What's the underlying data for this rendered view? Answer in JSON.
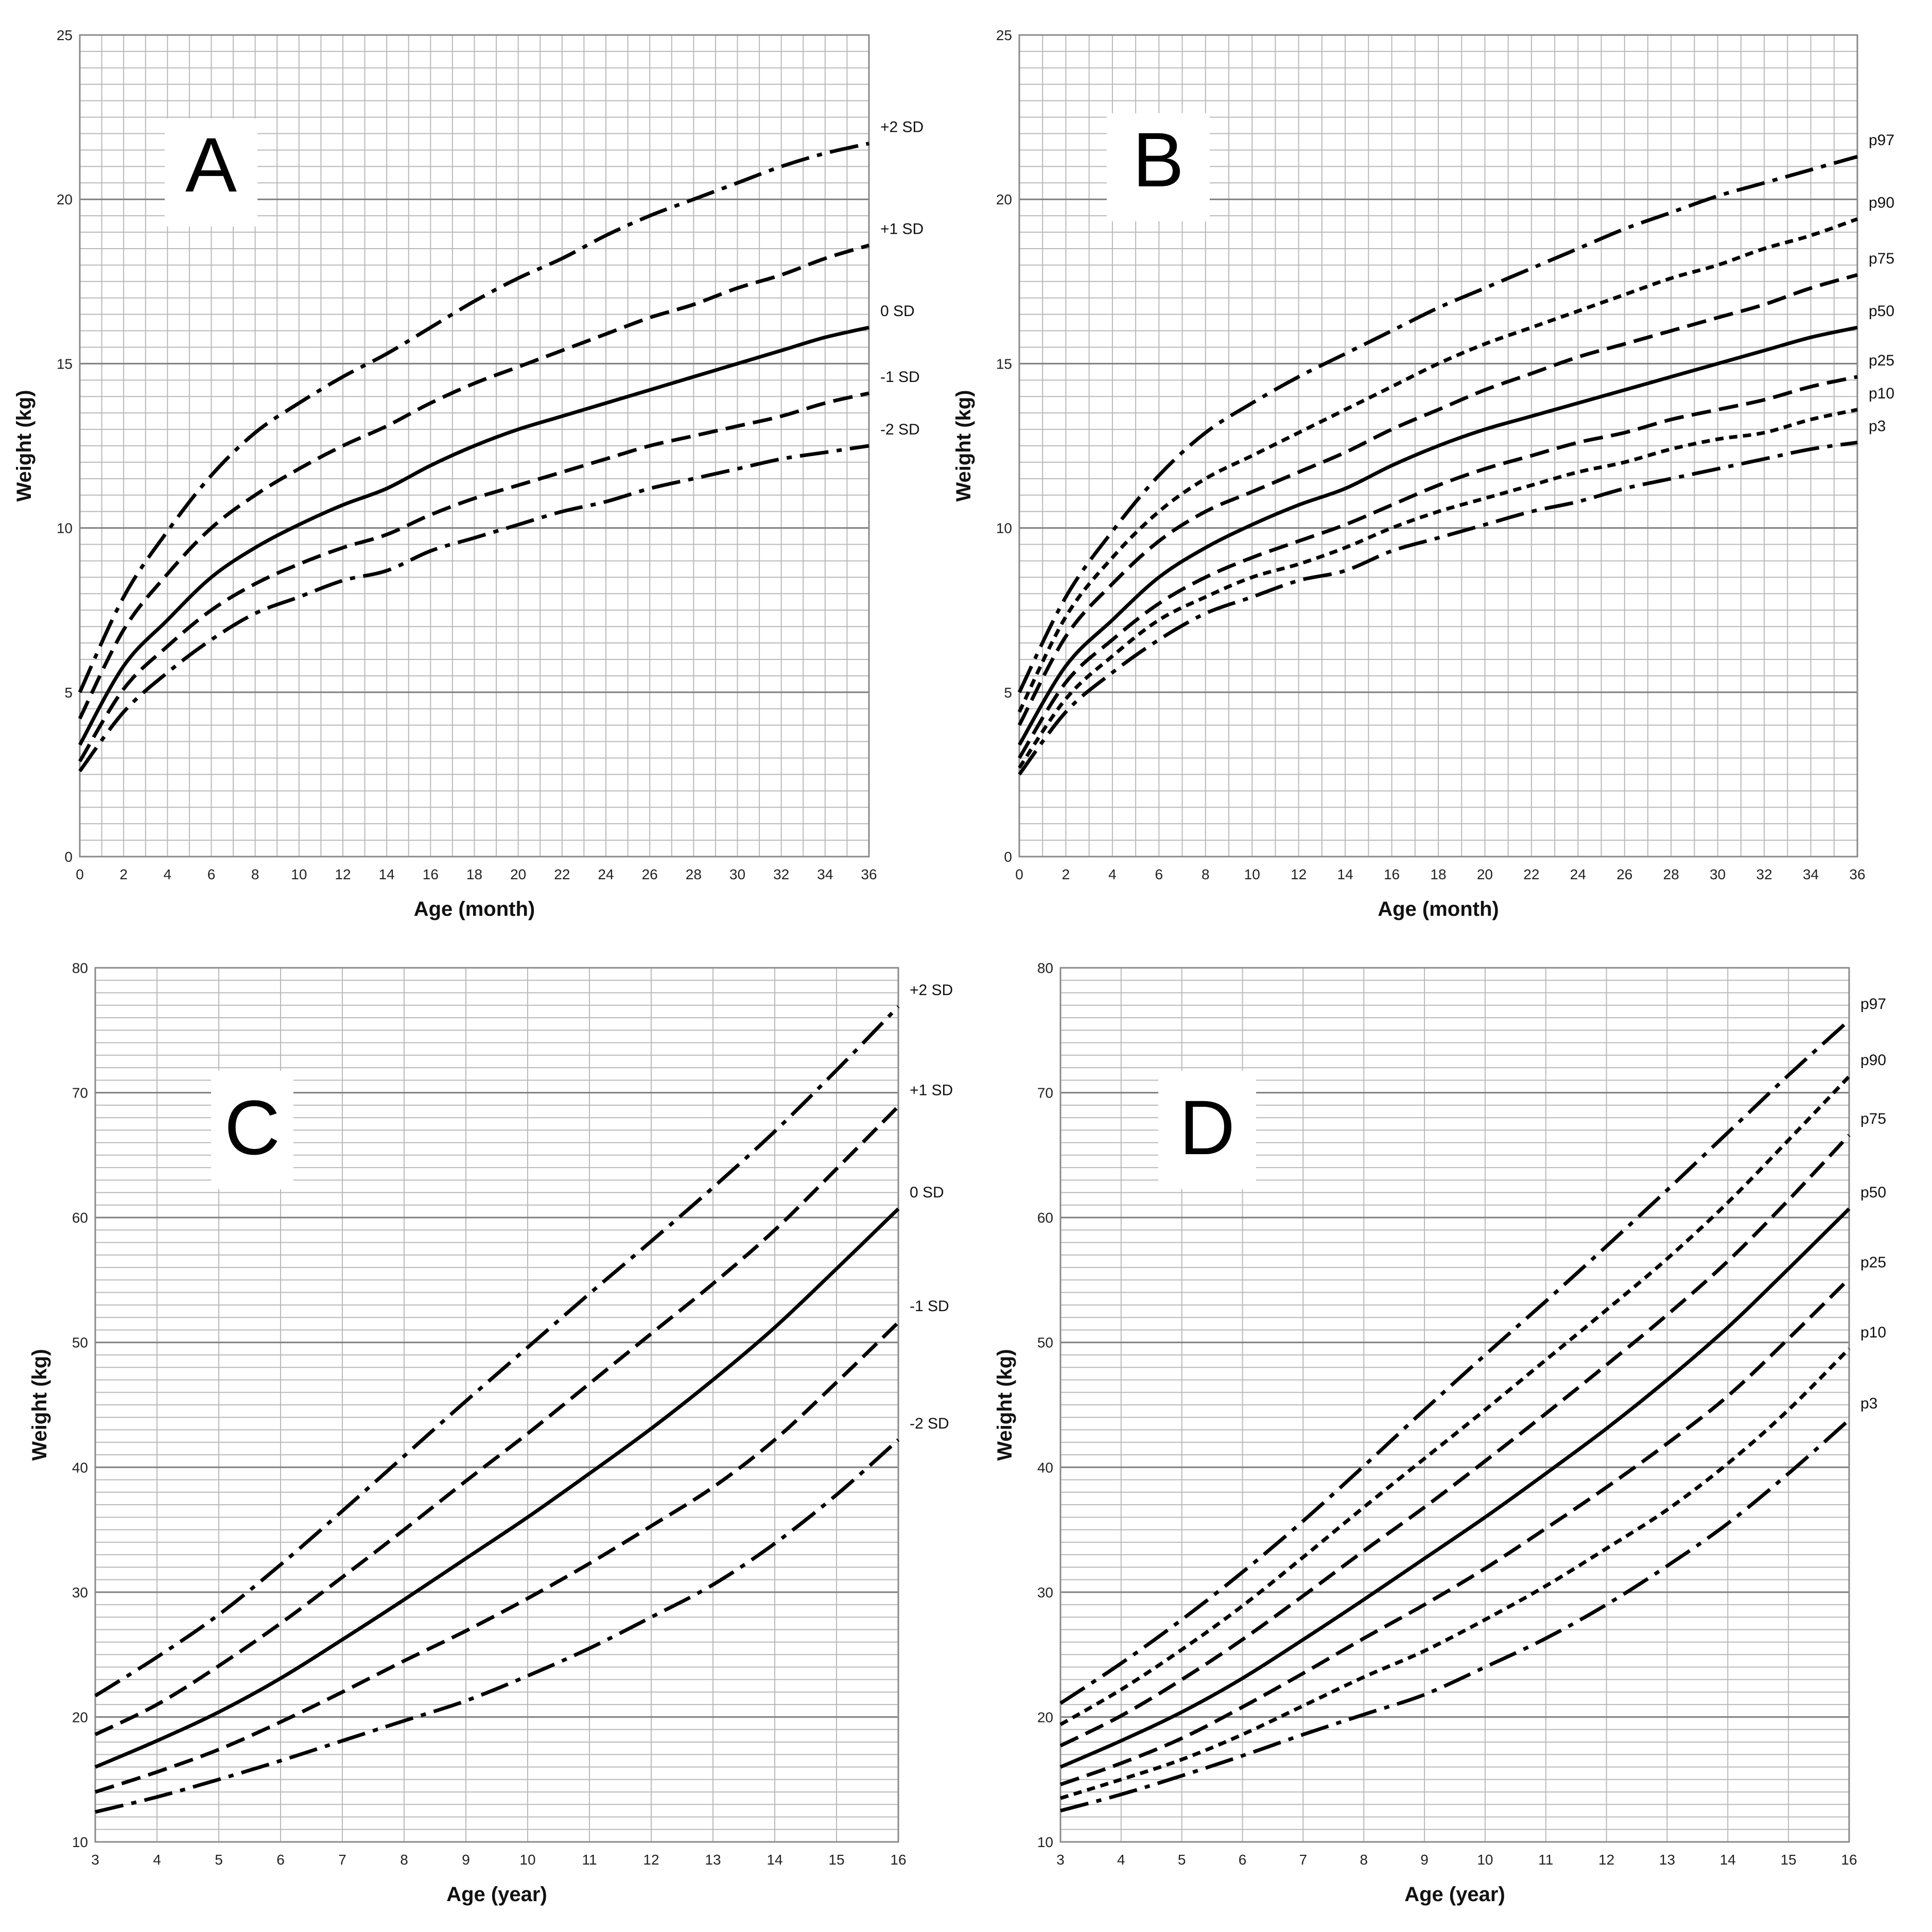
{
  "chart_data": [
    {
      "panel": "A",
      "type": "line",
      "xlabel": "Age (month)",
      "ylabel": "Weight (kg)",
      "xlim": [
        0,
        36
      ],
      "ylim": [
        0,
        25
      ],
      "xticks": [
        0,
        2,
        4,
        6,
        8,
        10,
        12,
        14,
        16,
        18,
        20,
        22,
        24,
        26,
        28,
        30,
        32,
        34,
        36
      ],
      "yticks": [
        0,
        5,
        10,
        15,
        20,
        25
      ],
      "grid": true,
      "x": [
        0,
        2,
        4,
        6,
        8,
        10,
        12,
        14,
        16,
        18,
        20,
        22,
        24,
        26,
        28,
        30,
        32,
        34,
        36
      ],
      "series": [
        {
          "name": "+2 SD",
          "style": "dashdot",
          "values": [
            5.0,
            7.9,
            9.9,
            11.6,
            12.9,
            13.8,
            14.6,
            15.3,
            16.1,
            16.9,
            17.6,
            18.2,
            18.9,
            19.5,
            20.0,
            20.5,
            21.0,
            21.4,
            21.7
          ]
        },
        {
          "name": "+1 SD",
          "style": "dash",
          "values": [
            4.2,
            6.9,
            8.6,
            10.0,
            11.0,
            11.8,
            12.5,
            13.1,
            13.8,
            14.4,
            14.9,
            15.4,
            15.9,
            16.4,
            16.8,
            17.3,
            17.7,
            18.2,
            18.6
          ]
        },
        {
          "name": "0 SD",
          "style": "solid",
          "values": [
            3.4,
            5.8,
            7.2,
            8.5,
            9.4,
            10.1,
            10.7,
            11.2,
            11.9,
            12.5,
            13.0,
            13.4,
            13.8,
            14.2,
            14.6,
            15.0,
            15.4,
            15.8,
            16.1
          ]
        },
        {
          "name": "-1 SD",
          "style": "dash",
          "values": [
            2.9,
            5.1,
            6.4,
            7.5,
            8.3,
            8.9,
            9.4,
            9.8,
            10.4,
            10.9,
            11.3,
            11.7,
            12.1,
            12.5,
            12.8,
            13.1,
            13.4,
            13.8,
            14.1
          ]
        },
        {
          "name": "-2 SD",
          "style": "dashdot",
          "values": [
            2.6,
            4.4,
            5.6,
            6.6,
            7.4,
            7.9,
            8.4,
            8.7,
            9.3,
            9.7,
            10.1,
            10.5,
            10.8,
            11.2,
            11.5,
            11.8,
            12.1,
            12.3,
            12.5
          ]
        }
      ]
    },
    {
      "panel": "B",
      "type": "line",
      "xlabel": "Age (month)",
      "ylabel": "Weight (kg)",
      "xlim": [
        0,
        36
      ],
      "ylim": [
        0,
        25
      ],
      "xticks": [
        0,
        2,
        4,
        6,
        8,
        10,
        12,
        14,
        16,
        18,
        20,
        22,
        24,
        26,
        28,
        30,
        32,
        34,
        36
      ],
      "yticks": [
        0,
        5,
        10,
        15,
        20,
        25
      ],
      "grid": true,
      "x": [
        0,
        2,
        4,
        6,
        8,
        10,
        12,
        14,
        16,
        18,
        20,
        22,
        24,
        26,
        28,
        30,
        32,
        34,
        36
      ],
      "series": [
        {
          "name": "p97",
          "style": "dashdot",
          "values": [
            5.0,
            7.9,
            9.9,
            11.6,
            12.9,
            13.8,
            14.6,
            15.3,
            16.0,
            16.7,
            17.3,
            17.9,
            18.5,
            19.1,
            19.6,
            20.1,
            20.5,
            20.9,
            21.3
          ]
        },
        {
          "name": "p90",
          "style": "dot",
          "values": [
            4.4,
            7.3,
            9.1,
            10.5,
            11.5,
            12.2,
            12.9,
            13.6,
            14.3,
            15.0,
            15.6,
            16.1,
            16.6,
            17.1,
            17.6,
            18.0,
            18.5,
            18.9,
            19.4
          ]
        },
        {
          "name": "p75",
          "style": "dash",
          "values": [
            4.0,
            6.7,
            8.3,
            9.6,
            10.5,
            11.1,
            11.7,
            12.3,
            13.0,
            13.6,
            14.2,
            14.7,
            15.2,
            15.6,
            16.0,
            16.4,
            16.8,
            17.3,
            17.7
          ]
        },
        {
          "name": "p50",
          "style": "solid",
          "values": [
            3.4,
            5.8,
            7.2,
            8.5,
            9.4,
            10.1,
            10.7,
            11.2,
            11.9,
            12.5,
            13.0,
            13.4,
            13.8,
            14.2,
            14.6,
            15.0,
            15.4,
            15.8,
            16.1
          ]
        },
        {
          "name": "p25",
          "style": "dash",
          "values": [
            3.0,
            5.3,
            6.6,
            7.7,
            8.5,
            9.1,
            9.6,
            10.1,
            10.7,
            11.3,
            11.8,
            12.2,
            12.6,
            12.9,
            13.3,
            13.6,
            13.9,
            14.3,
            14.6
          ]
        },
        {
          "name": "p10",
          "style": "dot",
          "values": [
            2.7,
            4.8,
            6.1,
            7.2,
            7.9,
            8.5,
            8.9,
            9.4,
            10.0,
            10.5,
            10.9,
            11.3,
            11.7,
            12.0,
            12.4,
            12.7,
            12.9,
            13.3,
            13.6
          ]
        },
        {
          "name": "p3",
          "style": "dashdot",
          "values": [
            2.5,
            4.4,
            5.6,
            6.6,
            7.4,
            7.9,
            8.4,
            8.7,
            9.3,
            9.7,
            10.1,
            10.5,
            10.8,
            11.2,
            11.5,
            11.8,
            12.1,
            12.4,
            12.6
          ]
        }
      ]
    },
    {
      "panel": "C",
      "type": "line",
      "xlabel": "Age (year)",
      "ylabel": "Weight (kg)",
      "xlim": [
        3,
        16
      ],
      "ylim": [
        10,
        80
      ],
      "xticks": [
        3,
        4,
        5,
        6,
        7,
        8,
        9,
        10,
        11,
        12,
        13,
        14,
        15,
        16
      ],
      "yticks": [
        10,
        20,
        30,
        40,
        50,
        60,
        70,
        80
      ],
      "grid": true,
      "x": [
        3,
        4,
        5,
        6,
        7,
        8,
        9,
        10,
        11,
        12,
        13,
        14,
        15,
        16
      ],
      "series": [
        {
          "name": "+2 SD",
          "style": "dashdot",
          "values": [
            21.7,
            24.8,
            28.2,
            32.2,
            36.5,
            40.9,
            45.3,
            49.6,
            53.9,
            58.1,
            62.4,
            66.9,
            71.8,
            76.9
          ]
        },
        {
          "name": "+1 SD",
          "style": "dash",
          "values": [
            18.6,
            21.0,
            24.1,
            27.5,
            31.2,
            35.0,
            38.9,
            42.7,
            46.7,
            50.7,
            54.7,
            59.0,
            63.9,
            68.9
          ]
        },
        {
          "name": "0 SD",
          "style": "solid",
          "values": [
            16.0,
            18.1,
            20.4,
            23.1,
            26.2,
            29.4,
            32.7,
            36.0,
            39.5,
            43.1,
            47.0,
            51.2,
            55.9,
            60.7
          ]
        },
        {
          "name": "-1 SD",
          "style": "dash",
          "values": [
            14.0,
            15.6,
            17.4,
            19.6,
            22.0,
            24.5,
            26.9,
            29.5,
            32.3,
            35.3,
            38.4,
            42.2,
            46.8,
            51.6
          ]
        },
        {
          "name": "-2 SD",
          "style": "dashdot",
          "values": [
            12.4,
            13.6,
            15.0,
            16.5,
            18.1,
            19.7,
            21.3,
            23.3,
            25.5,
            28.0,
            30.6,
            33.9,
            37.8,
            42.2
          ]
        }
      ]
    },
    {
      "panel": "D",
      "type": "line",
      "xlabel": "Age (year)",
      "ylabel": "Weight (kg)",
      "xlim": [
        3,
        16
      ],
      "ylim": [
        10,
        80
      ],
      "xticks": [
        3,
        4,
        5,
        6,
        7,
        8,
        9,
        10,
        11,
        12,
        13,
        14,
        15,
        16
      ],
      "yticks": [
        10,
        20,
        30,
        40,
        50,
        60,
        70,
        80
      ],
      "grid": true,
      "x": [
        3,
        4,
        5,
        6,
        7,
        8,
        9,
        10,
        11,
        12,
        13,
        14,
        15,
        16
      ],
      "series": [
        {
          "name": "p97",
          "style": "dashdot",
          "values": [
            21.1,
            24.3,
            27.8,
            31.6,
            35.7,
            40.1,
            44.6,
            49.0,
            53.3,
            57.7,
            62.2,
            66.8,
            71.4,
            75.8
          ]
        },
        {
          "name": "p90",
          "style": "dot",
          "values": [
            19.4,
            22.2,
            25.4,
            28.9,
            32.8,
            36.8,
            40.7,
            44.6,
            48.6,
            52.6,
            56.7,
            61.2,
            66.2,
            71.3
          ]
        },
        {
          "name": "p75",
          "style": "dash",
          "values": [
            17.7,
            20.1,
            23.0,
            26.2,
            29.7,
            33.3,
            36.8,
            40.5,
            44.3,
            48.2,
            52.2,
            56.5,
            61.4,
            66.6
          ]
        },
        {
          "name": "p50",
          "style": "solid",
          "values": [
            16.0,
            18.1,
            20.4,
            23.1,
            26.2,
            29.4,
            32.7,
            36.0,
            39.5,
            43.1,
            47.0,
            51.2,
            55.9,
            60.7
          ]
        },
        {
          "name": "p25",
          "style": "dash",
          "values": [
            14.6,
            16.3,
            18.3,
            20.8,
            23.5,
            26.3,
            29.0,
            31.9,
            35.1,
            38.4,
            41.9,
            45.7,
            50.3,
            55.1
          ]
        },
        {
          "name": "p10",
          "style": "dot",
          "values": [
            13.5,
            15.0,
            16.6,
            18.6,
            20.9,
            23.2,
            25.3,
            27.8,
            30.5,
            33.5,
            36.6,
            40.3,
            44.6,
            49.5
          ]
        },
        {
          "name": "p3",
          "style": "dashdot",
          "values": [
            12.5,
            13.8,
            15.3,
            16.9,
            18.6,
            20.2,
            21.8,
            24.0,
            26.3,
            29.0,
            32.1,
            35.5,
            39.5,
            43.8
          ]
        }
      ]
    }
  ]
}
